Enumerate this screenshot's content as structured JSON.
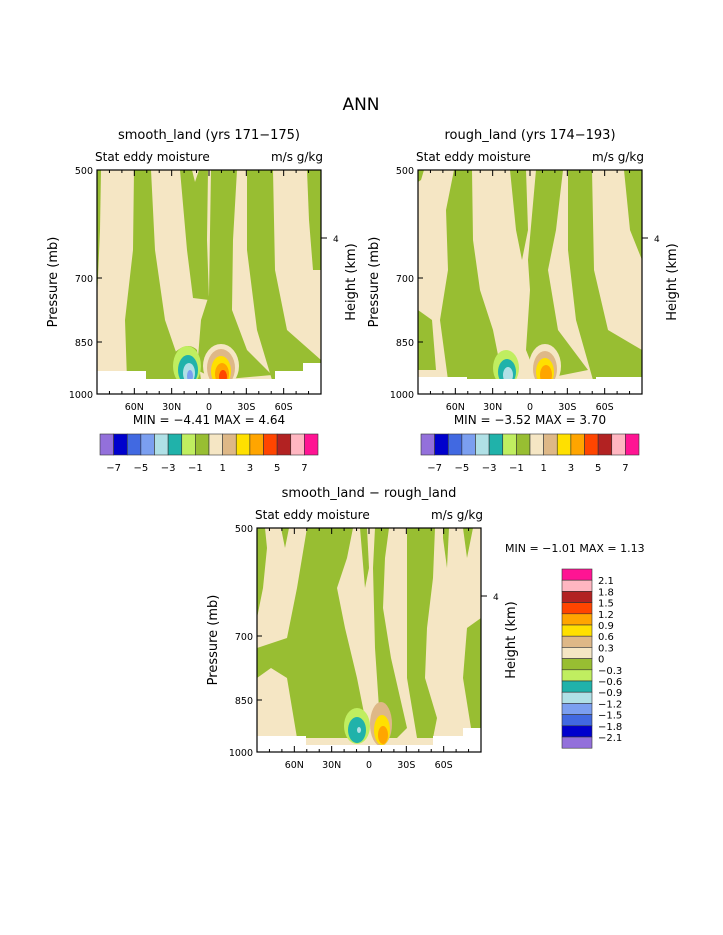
{
  "page_title": "ANN",
  "colors": [
    "#9370DB",
    "#0000CD",
    "#4169E1",
    "#7B9FF0",
    "#B0E0E6",
    "#20B2AA",
    "#C0EE60",
    "#98BE32",
    "#F5E6C4",
    "#DEB887",
    "#FFE000",
    "#FFA500",
    "#FF4500",
    "#B22222",
    "#FFB6C1",
    "#FF1493"
  ],
  "chart_data": [
    {
      "type": "heatmap",
      "title": "smooth_land (yrs 171−175)",
      "subtitle_left": "Stat eddy moisture",
      "subtitle_right": "m/s g/kg",
      "ylabel": "Pressure (mb)",
      "ylabel_right": "Height (km)",
      "yticks": [
        "500",
        "700",
        "850",
        "1000"
      ],
      "yticks_right": [
        "4"
      ],
      "xticks": [
        "60N",
        "30N",
        "0",
        "30S",
        "60S"
      ],
      "min_max": "MIN =   −4.41   MAX =    4.64",
      "legend_labels": [
        "−7",
        "−5",
        "−3",
        "−1",
        "1",
        "3",
        "5",
        "7"
      ]
    },
    {
      "type": "heatmap",
      "title": "rough_land (yrs 174−193)",
      "subtitle_left": "Stat eddy moisture",
      "subtitle_right": "m/s g/kg",
      "ylabel": "Pressure (mb)",
      "ylabel_right": "Height (km)",
      "yticks": [
        "500",
        "700",
        "850",
        "1000"
      ],
      "yticks_right": [
        "4"
      ],
      "xticks": [
        "60N",
        "30N",
        "0",
        "30S",
        "60S"
      ],
      "min_max": "MIN =   −3.52   MAX =    3.70",
      "legend_labels": [
        "−7",
        "−5",
        "−3",
        "−1",
        "1",
        "3",
        "5",
        "7"
      ]
    },
    {
      "type": "heatmap",
      "title": "smooth_land − rough_land",
      "subtitle_left": "Stat eddy moisture",
      "subtitle_right": "m/s g/kg",
      "ylabel": "Pressure (mb)",
      "ylabel_right": "Height (km)",
      "yticks": [
        "500",
        "700",
        "850",
        "1000"
      ],
      "yticks_right": [
        "4"
      ],
      "xticks": [
        "60N",
        "30N",
        "0",
        "30S",
        "60S"
      ],
      "min_max": "MIN =   −1.01   MAX =    1.13",
      "legend_labels": [
        "2.1",
        "1.8",
        "1.5",
        "1.2",
        "0.9",
        "0.6",
        "0.3",
        "0",
        "−0.3",
        "−0.6",
        "−0.9",
        "−1.2",
        "−1.5",
        "−1.8",
        "−2.1"
      ]
    }
  ]
}
